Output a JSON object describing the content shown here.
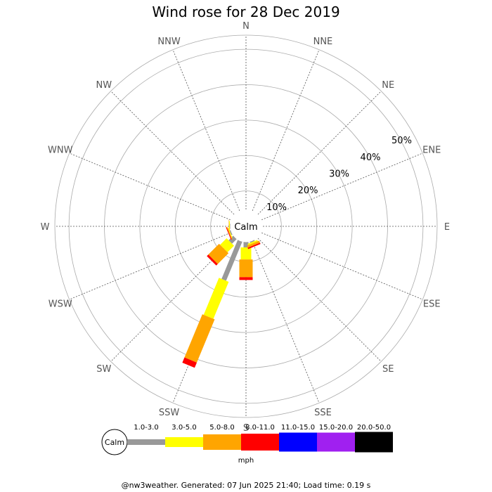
{
  "chart_data": {
    "type": "wind-rose",
    "title": "Wind rose for 28 Dec 2019",
    "calm_label": "Calm",
    "directions": [
      "N",
      "NNE",
      "NE",
      "ENE",
      "E",
      "ESE",
      "SE",
      "SSE",
      "S",
      "SSW",
      "SW",
      "WSW",
      "W",
      "WNW",
      "NW",
      "NNW"
    ],
    "radial_ticks": [
      "10%",
      "20%",
      "30%",
      "40%",
      "50%"
    ],
    "radial_tick_values": [
      10,
      20,
      30,
      40,
      50
    ],
    "rmax_percent": 54,
    "calm_percent": 3.3,
    "speed_bins": [
      {
        "label": "1.0-3.0",
        "color": "#999999"
      },
      {
        "label": "3.0-5.0",
        "color": "#ffff00"
      },
      {
        "label": "5.0-8.0",
        "color": "#ffa500"
      },
      {
        "label": "8.0-11.0",
        "color": "#ff0000"
      },
      {
        "label": "11.0-15.0",
        "color": "#0000ff"
      },
      {
        "label": "15.0-20.0",
        "color": "#a020f0"
      },
      {
        "label": "20.0-50.0",
        "color": "#000000"
      }
    ],
    "speed_unit": "mph",
    "series": [
      {
        "direction": "S",
        "values": [
          1.6,
          3.4,
          5.0,
          0.8,
          0,
          0,
          0
        ]
      },
      {
        "direction": "SSE",
        "values": [
          0.4,
          0.4,
          0.6,
          0.4,
          0,
          0,
          0
        ]
      },
      {
        "direction": "SSW",
        "values": [
          12.0,
          11.3,
          13.2,
          1.6,
          0,
          0,
          0
        ]
      },
      {
        "direction": "SW",
        "values": [
          1.9,
          2.6,
          4.3,
          0.6,
          0,
          0,
          0
        ]
      },
      {
        "direction": "WSW",
        "values": [
          0.4,
          0.2,
          0.2,
          0.2,
          0,
          0,
          0
        ]
      },
      {
        "direction": "W",
        "values": [
          0.2,
          0.2,
          0.1,
          0,
          0,
          0,
          0
        ]
      }
    ]
  },
  "footer": "@nw3weather. Generated: 07 Jun 2025 21:40; Load time: 0.19 s"
}
